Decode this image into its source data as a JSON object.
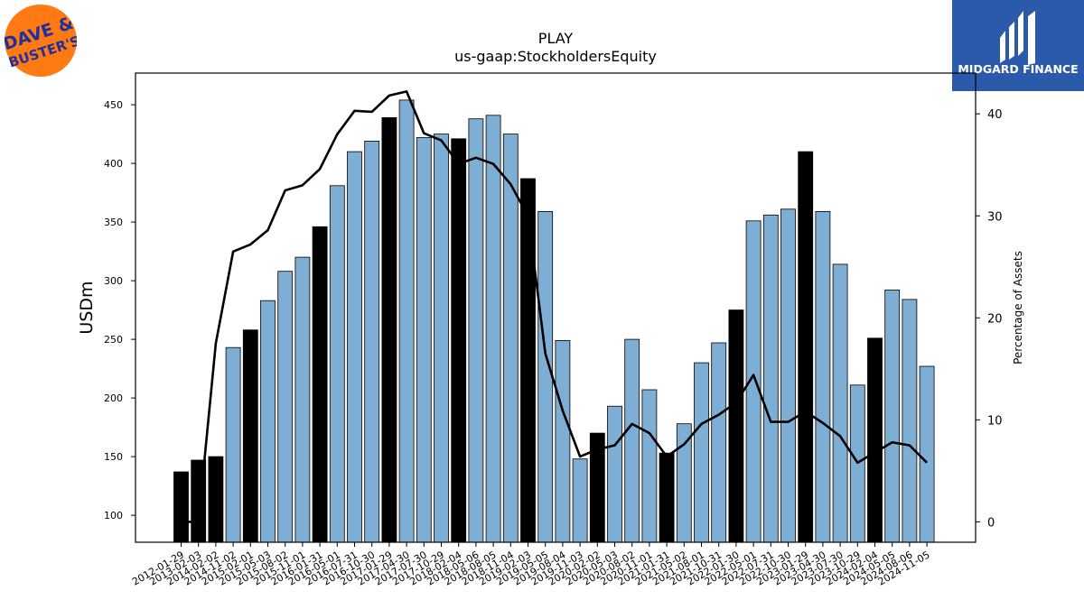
{
  "logos": {
    "left_text_line1": "DAVE &",
    "left_text_line2": "BUSTER'S",
    "right_text": "MIDGARD FINANCE",
    "left_bg": "#ff7a12",
    "left_fg": "#1f2f9e",
    "right_bg": "#2c5aab",
    "right_fg": "#ffffff"
  },
  "chart_data": {
    "type": "bar",
    "title": "PLAY",
    "subtitle": "us-gaap:StockholdersEquity",
    "ylabel": "USDm",
    "y2label": "Percentage of Assets",
    "ylim": [
      77,
      477
    ],
    "y2lim": [
      -2,
      44
    ],
    "yticks": [
      100,
      150,
      200,
      250,
      300,
      350,
      400,
      450
    ],
    "y2ticks": [
      0,
      10,
      20,
      30,
      40
    ],
    "colors": {
      "bar_quarter": "#7eaed3",
      "bar_annual": "#000000",
      "line": "#000000"
    },
    "categories": [
      "2012-01-29",
      "2013-02-03",
      "2014-02-02",
      "2014-11-02",
      "2015-02-01",
      "2015-05-03",
      "2015-08-02",
      "2015-11-01",
      "2016-01-31",
      "2016-05-01",
      "2016-07-31",
      "2016-10-30",
      "2017-01-29",
      "2017-04-30",
      "2017-07-30",
      "2017-10-29",
      "2018-02-04",
      "2018-05-06",
      "2018-08-05",
      "2018-11-04",
      "2019-02-03",
      "2019-05-05",
      "2019-08-04",
      "2019-11-03",
      "2020-02-02",
      "2020-05-03",
      "2020-08-02",
      "2020-11-01",
      "2021-01-31",
      "2021-05-02",
      "2021-08-01",
      "2021-10-31",
      "2022-01-30",
      "2022-05-01",
      "2022-07-31",
      "2022-10-30",
      "2023-01-29",
      "2023-04-30",
      "2023-07-30",
      "2023-10-29",
      "2024-02-04",
      "2024-05-05",
      "2024-08-06",
      "2024-11-05"
    ],
    "values": [
      137,
      147,
      150,
      243,
      258,
      283,
      308,
      320,
      346,
      381,
      410,
      419,
      439,
      454,
      422,
      425,
      421,
      438,
      441,
      425,
      387,
      359,
      249,
      148,
      170,
      193,
      250,
      207,
      153,
      178,
      230,
      247,
      275,
      351,
      356,
      361,
      410,
      359,
      314,
      211,
      251,
      292,
      284,
      227
    ],
    "is_annual": [
      true,
      true,
      true,
      false,
      true,
      false,
      false,
      false,
      true,
      false,
      false,
      false,
      true,
      false,
      false,
      false,
      true,
      false,
      false,
      false,
      true,
      false,
      false,
      false,
      true,
      false,
      false,
      false,
      true,
      false,
      false,
      false,
      true,
      false,
      false,
      false,
      true,
      false,
      false,
      false,
      true,
      false,
      false,
      false
    ],
    "pct_of_assets": [
      0,
      0,
      17.5,
      26.5,
      27.2,
      28.6,
      32.5,
      33.0,
      34.6,
      38.0,
      40.3,
      40.2,
      41.8,
      42.2,
      38.1,
      37.4,
      35.1,
      35.7,
      35.1,
      33.1,
      30.0,
      16.5,
      10.9,
      6.4,
      7.1,
      7.5,
      9.6,
      8.7,
      6.4,
      7.6,
      9.6,
      10.5,
      11.7,
      14.4,
      9.8,
      9.8,
      10.8,
      9.7,
      8.4,
      5.8,
      6.8,
      7.8,
      7.5,
      5.8
    ]
  }
}
